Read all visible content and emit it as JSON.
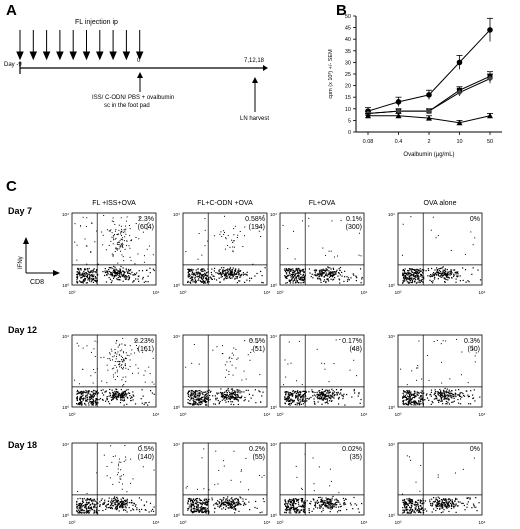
{
  "panelA": {
    "letter": "A",
    "injection_label": "FL injection ip",
    "day_start": "Day -9",
    "day_zero": "0",
    "day_late": "7,12,18",
    "immunization_line1": "ISS/ C-ODN/ PBS + ovalbumin",
    "immunization_line2": "sc in the foot pad",
    "harvest_label": "LN harvest"
  },
  "panelB": {
    "letter": "B",
    "ylabel": "cpm (x 10³) +/- SEM",
    "xlabel": "Ovalbumin (µg/mL)"
  },
  "chart_data": {
    "type": "line",
    "categories": [
      "0.08",
      "0.4",
      "2",
      "10",
      "50"
    ],
    "xlabel": "Ovalbumin (µg/mL)",
    "ylabel": "cpm (x 10³) +/- SEM",
    "yticks": [
      "0",
      "5",
      "10",
      "15",
      "20",
      "25",
      "30",
      "35",
      "40",
      "45",
      "50"
    ],
    "ylim": [
      0,
      50
    ],
    "grid": false,
    "series": [
      {
        "marker": "circle",
        "values": [
          9,
          13,
          16,
          30,
          44
        ],
        "err": [
          1.5,
          2,
          2,
          3,
          5
        ]
      },
      {
        "marker": "square",
        "values": [
          8,
          9,
          9,
          18,
          24
        ],
        "err": [
          1,
          1,
          1,
          1.5,
          2
        ]
      },
      {
        "marker": "diamond",
        "values": [
          8,
          9,
          9,
          17,
          23
        ],
        "err": [
          1,
          1,
          1,
          1.5,
          2
        ]
      },
      {
        "marker": "triangle",
        "values": [
          7,
          7,
          6,
          4,
          7
        ],
        "err": [
          1,
          1,
          1,
          1,
          1
        ]
      }
    ]
  },
  "panelC": {
    "letter": "C",
    "yaxis_label": "IFNγ",
    "xaxis_label": "CD8",
    "tick_low": "10⁰",
    "tick_high": "10⁴",
    "columns": [
      "FL +ISS+OVA",
      "FL+C-ODN +OVA",
      "FL+OVA",
      "OVA alone"
    ],
    "rows": [
      {
        "day": "Day 7",
        "cells": [
          {
            "pct": "2.3%",
            "count": "(604)"
          },
          {
            "pct": "0.58%",
            "count": "(194)"
          },
          {
            "pct": "0.1%",
            "count": "(300)"
          },
          {
            "pct": "0%",
            "count": ""
          }
        ]
      },
      {
        "day": "Day 12",
        "cells": [
          {
            "pct": "2.23%",
            "count": "(161)"
          },
          {
            "pct": "0.5%",
            "count": "(51)"
          },
          {
            "pct": "0.17%",
            "count": "(48)"
          },
          {
            "pct": "0.3%",
            "count": "(50)"
          }
        ]
      },
      {
        "day": "Day 18",
        "cells": [
          {
            "pct": "0.5%",
            "count": "(140)"
          },
          {
            "pct": "0.2%",
            "count": "(55)"
          },
          {
            "pct": "0.02%",
            "count": "(35)"
          },
          {
            "pct": "0%",
            "count": ""
          }
        ]
      }
    ]
  }
}
